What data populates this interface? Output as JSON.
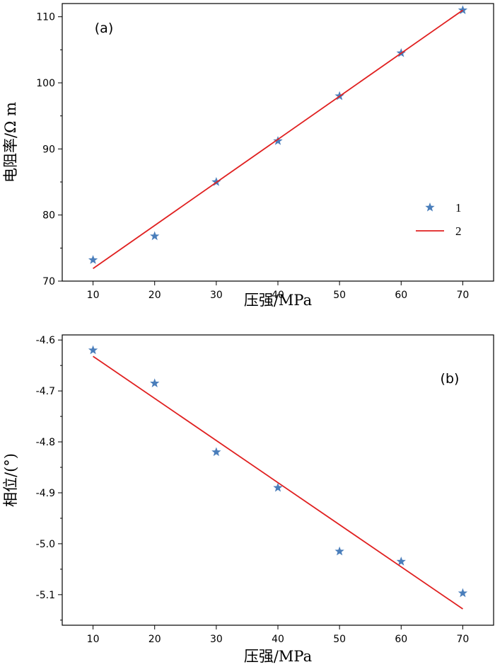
{
  "chart_data": [
    {
      "type": "scatter",
      "panel_label": "(a)",
      "xlabel": "压强/MPa",
      "ylabel": "电阻率/Ω m",
      "xlim": [
        5,
        75
      ],
      "ylim": [
        70,
        112
      ],
      "xticks": [
        10,
        20,
        30,
        40,
        50,
        60,
        70
      ],
      "yticks": [
        70,
        80,
        90,
        100,
        110
      ],
      "ytick_labels": [
        "70",
        "80",
        "90",
        "100",
        "110"
      ],
      "series": [
        {
          "name": "1",
          "kind": "marker",
          "color": "#4a7ebb",
          "x": [
            10,
            20,
            30,
            40,
            50,
            60,
            70
          ],
          "y": [
            73.2,
            76.8,
            85.0,
            91.2,
            98.0,
            104.5,
            111.0
          ]
        },
        {
          "name": "2",
          "kind": "line",
          "color": "#e02020",
          "x": [
            10,
            70
          ],
          "y": [
            71.9,
            111.0
          ]
        }
      ],
      "legend": {
        "position": "right",
        "entries": [
          "1",
          "2"
        ]
      }
    },
    {
      "type": "scatter",
      "panel_label": "(b)",
      "xlabel": "压强/MPa",
      "ylabel": "相位/(°)",
      "xlim": [
        5,
        75
      ],
      "ylim": [
        -5.16,
        -4.59
      ],
      "xticks": [
        10,
        20,
        30,
        40,
        50,
        60,
        70
      ],
      "yticks": [
        -4.6,
        -4.7,
        -4.8,
        -4.9,
        -5.0,
        -5.1
      ],
      "ytick_labels": [
        "-4.6",
        "-4.7",
        "-4.8",
        "-4.9",
        "-5.0",
        "-5.1"
      ],
      "series": [
        {
          "name": "1",
          "kind": "marker",
          "color": "#4a7ebb",
          "x": [
            10,
            20,
            30,
            40,
            50,
            60,
            70
          ],
          "y": [
            -4.62,
            -4.685,
            -4.82,
            -4.89,
            -5.015,
            -5.035,
            -5.097
          ]
        },
        {
          "name": "2",
          "kind": "line",
          "color": "#e02020",
          "x": [
            10,
            70
          ],
          "y": [
            -4.632,
            -5.128
          ]
        }
      ]
    }
  ]
}
